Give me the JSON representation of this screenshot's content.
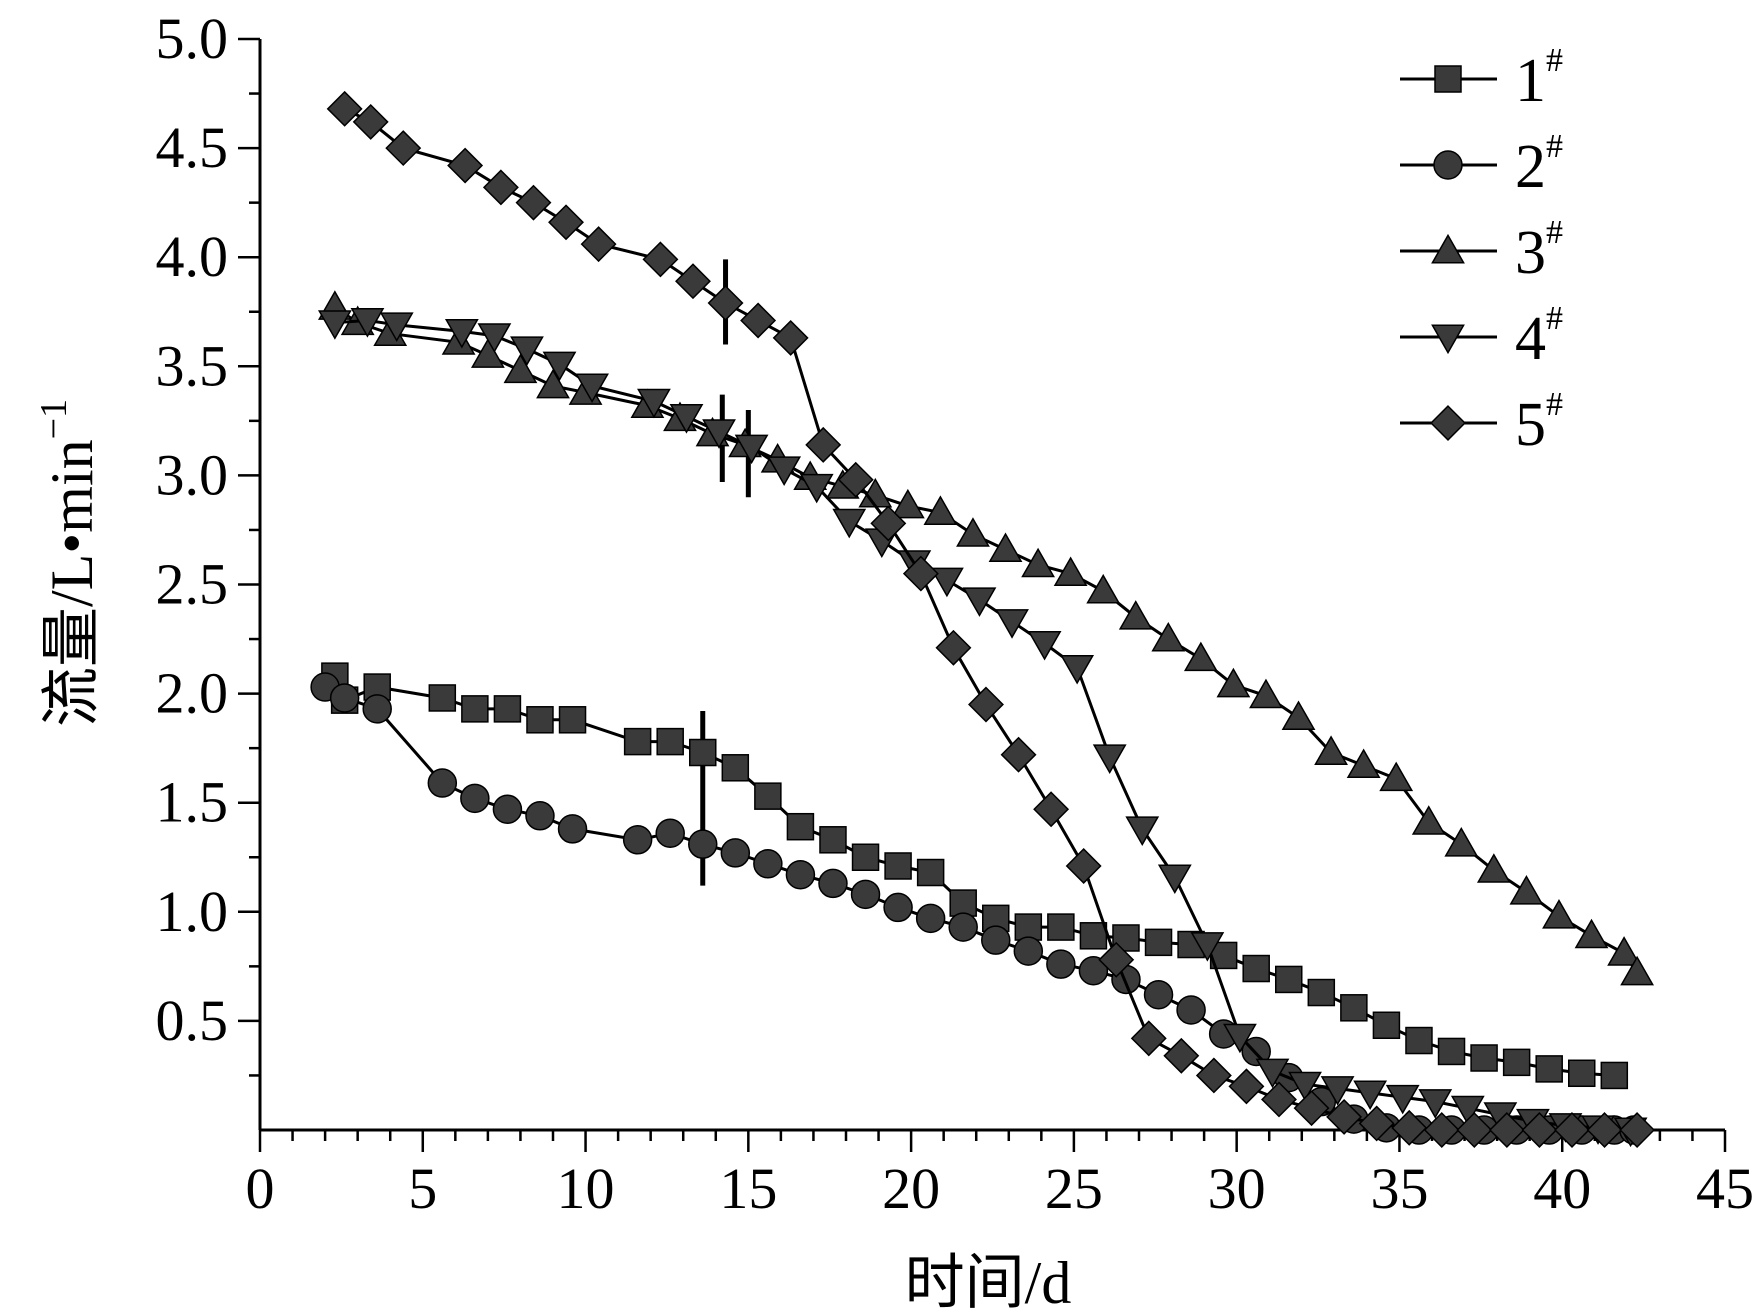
{
  "chart_data": {
    "type": "line",
    "xlabel": "时间/d",
    "ylabel": {
      "main": "流量/L•min",
      "sup": "−1"
    },
    "xlim": [
      0,
      45
    ],
    "ylim": [
      0,
      5.0
    ],
    "xticks": [
      "0",
      "5",
      "10",
      "15",
      "20",
      "25",
      "30",
      "35",
      "40",
      "45"
    ],
    "yticks": [
      "0.5",
      "1.0",
      "1.5",
      "2.0",
      "2.5",
      "3.0",
      "3.5",
      "4.0",
      "4.5",
      "5.0"
    ],
    "grid": false,
    "legend_position": "top-right",
    "series": [
      {
        "name": "1",
        "name_sup": "#",
        "marker": "square",
        "points": [
          [
            2.3,
            2.08
          ],
          [
            2.6,
            1.97
          ],
          [
            3.6,
            2.03
          ],
          [
            5.6,
            1.98
          ],
          [
            6.6,
            1.93
          ],
          [
            7.6,
            1.93
          ],
          [
            8.6,
            1.88
          ],
          [
            9.6,
            1.88
          ],
          [
            11.6,
            1.78
          ],
          [
            12.6,
            1.78
          ],
          [
            13.6,
            1.73
          ],
          [
            14.6,
            1.66
          ],
          [
            15.6,
            1.53
          ],
          [
            16.6,
            1.39
          ],
          [
            17.6,
            1.33
          ],
          [
            18.6,
            1.25
          ],
          [
            19.6,
            1.21
          ],
          [
            20.6,
            1.18
          ],
          [
            21.6,
            1.04
          ],
          [
            22.6,
            0.97
          ],
          [
            23.6,
            0.93
          ],
          [
            24.6,
            0.93
          ],
          [
            25.6,
            0.89
          ],
          [
            26.6,
            0.88
          ],
          [
            27.6,
            0.86
          ],
          [
            28.6,
            0.85
          ],
          [
            29.6,
            0.8
          ],
          [
            30.6,
            0.74
          ],
          [
            31.6,
            0.69
          ],
          [
            32.6,
            0.63
          ],
          [
            33.6,
            0.56
          ],
          [
            34.6,
            0.48
          ],
          [
            35.6,
            0.41
          ],
          [
            36.6,
            0.36
          ],
          [
            37.6,
            0.33
          ],
          [
            38.6,
            0.31
          ],
          [
            39.6,
            0.28
          ],
          [
            40.6,
            0.26
          ],
          [
            41.6,
            0.25
          ]
        ],
        "marker_xs": [
          2.3,
          2.6,
          3.6,
          5.6,
          6.6,
          7.6,
          8.6,
          9.6,
          11.6,
          12.6,
          13.6,
          14.6,
          15.6,
          16.6,
          17.6,
          18.6,
          19.6,
          20.6,
          21.6,
          22.6,
          23.6,
          24.6,
          25.6,
          26.6,
          27.6,
          28.6,
          29.6,
          30.6,
          31.6,
          32.6,
          33.6,
          34.6,
          35.6,
          36.6,
          37.6,
          38.6,
          39.6,
          40.6,
          41.6
        ]
      },
      {
        "name": "2",
        "name_sup": "#",
        "marker": "circle",
        "points": [
          [
            2.0,
            2.03
          ],
          [
            2.6,
            1.98
          ],
          [
            3.6,
            1.93
          ],
          [
            5.6,
            1.59
          ],
          [
            6.6,
            1.52
          ],
          [
            7.6,
            1.47
          ],
          [
            8.6,
            1.44
          ],
          [
            9.6,
            1.38
          ],
          [
            11.6,
            1.33
          ],
          [
            12.6,
            1.36
          ],
          [
            13.6,
            1.31
          ],
          [
            14.6,
            1.27
          ],
          [
            15.6,
            1.22
          ],
          [
            16.6,
            1.17
          ],
          [
            17.6,
            1.13
          ],
          [
            18.6,
            1.08
          ],
          [
            19.6,
            1.02
          ],
          [
            20.6,
            0.97
          ],
          [
            21.6,
            0.93
          ],
          [
            22.6,
            0.87
          ],
          [
            23.6,
            0.82
          ],
          [
            24.6,
            0.76
          ],
          [
            25.6,
            0.73
          ],
          [
            26.6,
            0.69
          ],
          [
            27.6,
            0.62
          ],
          [
            28.6,
            0.55
          ],
          [
            29.6,
            0.44
          ],
          [
            30.6,
            0.36
          ],
          [
            31.6,
            0.24
          ],
          [
            32.6,
            0.13
          ],
          [
            33.6,
            0.05
          ],
          [
            34.6,
            0.01
          ],
          [
            35.6,
            0.0
          ],
          [
            36.6,
            0.0
          ],
          [
            37.6,
            0.0
          ],
          [
            38.6,
            0.0
          ],
          [
            39.6,
            0.0
          ],
          [
            40.6,
            0.0
          ],
          [
            41.6,
            0.0
          ],
          [
            42.2,
            0.0
          ]
        ],
        "marker_xs": [
          2.0,
          2.6,
          3.6,
          5.6,
          6.6,
          7.6,
          8.6,
          9.6,
          11.6,
          12.6,
          13.6,
          14.6,
          15.6,
          16.6,
          17.6,
          18.6,
          19.6,
          20.6,
          21.6,
          22.6,
          23.6,
          24.6,
          25.6,
          26.6,
          27.6,
          28.6,
          29.6,
          30.6,
          31.6,
          32.6,
          33.6,
          34.6,
          35.6,
          36.6,
          37.6,
          38.6,
          39.6,
          40.6,
          41.6,
          42.2
        ]
      },
      {
        "name": "3",
        "name_sup": "#",
        "marker": "triangle-up",
        "points": [
          [
            2.3,
            3.77
          ],
          [
            3.0,
            3.7
          ],
          [
            4.0,
            3.65
          ],
          [
            6.1,
            3.61
          ],
          [
            7.0,
            3.55
          ],
          [
            8.0,
            3.48
          ],
          [
            9.0,
            3.41
          ],
          [
            10.0,
            3.38
          ],
          [
            11.9,
            3.32
          ],
          [
            12.9,
            3.26
          ],
          [
            13.9,
            3.19
          ],
          [
            14.9,
            3.14
          ],
          [
            15.9,
            3.07
          ],
          [
            16.9,
            2.99
          ],
          [
            17.9,
            2.95
          ],
          [
            18.9,
            2.91
          ],
          [
            19.9,
            2.86
          ],
          [
            20.9,
            2.83
          ],
          [
            21.9,
            2.73
          ],
          [
            22.9,
            2.66
          ],
          [
            23.9,
            2.59
          ],
          [
            24.9,
            2.55
          ],
          [
            25.9,
            2.47
          ],
          [
            26.9,
            2.35
          ],
          [
            27.9,
            2.25
          ],
          [
            28.9,
            2.16
          ],
          [
            29.9,
            2.04
          ],
          [
            30.9,
            1.99
          ],
          [
            31.9,
            1.89
          ],
          [
            32.9,
            1.73
          ],
          [
            33.9,
            1.67
          ],
          [
            34.9,
            1.61
          ],
          [
            35.9,
            1.41
          ],
          [
            36.9,
            1.31
          ],
          [
            37.9,
            1.19
          ],
          [
            38.9,
            1.09
          ],
          [
            39.9,
            0.98
          ],
          [
            40.9,
            0.89
          ],
          [
            41.9,
            0.81
          ],
          [
            42.3,
            0.72
          ]
        ],
        "marker_xs": [
          2.3,
          3.0,
          4.0,
          6.1,
          7.0,
          8.0,
          9.0,
          10.0,
          11.9,
          12.9,
          13.9,
          14.9,
          15.9,
          16.9,
          17.9,
          18.9,
          19.9,
          20.9,
          21.9,
          22.9,
          23.9,
          24.9,
          25.9,
          26.9,
          27.9,
          28.9,
          29.9,
          30.9,
          31.9,
          32.9,
          33.9,
          34.9,
          35.9,
          36.9,
          37.9,
          38.9,
          39.9,
          40.9,
          41.9,
          42.3
        ]
      },
      {
        "name": "4",
        "name_sup": "#",
        "marker": "triangle-down",
        "points": [
          [
            2.3,
            3.7
          ],
          [
            3.3,
            3.71
          ],
          [
            4.2,
            3.69
          ],
          [
            6.2,
            3.66
          ],
          [
            7.2,
            3.64
          ],
          [
            8.2,
            3.58
          ],
          [
            9.2,
            3.51
          ],
          [
            10.2,
            3.41
          ],
          [
            12.1,
            3.34
          ],
          [
            13.1,
            3.27
          ],
          [
            14.1,
            3.2
          ],
          [
            15.1,
            3.13
          ],
          [
            16.1,
            3.03
          ],
          [
            17.1,
            2.95
          ],
          [
            18.1,
            2.79
          ],
          [
            19.1,
            2.7
          ],
          [
            20.1,
            2.6
          ],
          [
            21.1,
            2.52
          ],
          [
            22.1,
            2.43
          ],
          [
            23.1,
            2.33
          ],
          [
            24.1,
            2.23
          ],
          [
            25.1,
            2.12
          ],
          [
            26.1,
            1.71
          ],
          [
            27.1,
            1.38
          ],
          [
            28.1,
            1.16
          ],
          [
            29.1,
            0.85
          ],
          [
            30.1,
            0.43
          ],
          [
            31.1,
            0.27
          ],
          [
            32.1,
            0.21
          ],
          [
            33.1,
            0.19
          ],
          [
            34.1,
            0.17
          ],
          [
            35.1,
            0.15
          ],
          [
            36.1,
            0.13
          ],
          [
            37.1,
            0.1
          ],
          [
            38.1,
            0.07
          ],
          [
            39.1,
            0.04
          ],
          [
            40.1,
            0.02
          ],
          [
            41.1,
            0.01
          ],
          [
            42.1,
            0.0
          ]
        ],
        "marker_xs": [
          2.3,
          3.3,
          4.2,
          6.2,
          7.2,
          8.2,
          9.2,
          10.2,
          12.1,
          13.1,
          14.1,
          15.1,
          16.1,
          17.1,
          18.1,
          19.1,
          20.1,
          21.1,
          22.1,
          23.1,
          24.1,
          25.1,
          26.1,
          27.1,
          28.1,
          29.1,
          30.1,
          31.1,
          32.1,
          33.1,
          34.1,
          35.1,
          36.1,
          37.1,
          38.1,
          39.1,
          40.1,
          41.1,
          42.1
        ]
      },
      {
        "name": "5",
        "name_sup": "#",
        "marker": "diamond",
        "points": [
          [
            2.6,
            4.68
          ],
          [
            3.4,
            4.62
          ],
          [
            4.4,
            4.5
          ],
          [
            6.3,
            4.42
          ],
          [
            7.4,
            4.32
          ],
          [
            8.4,
            4.25
          ],
          [
            9.4,
            4.16
          ],
          [
            10.4,
            4.06
          ],
          [
            12.3,
            3.99
          ],
          [
            13.3,
            3.89
          ],
          [
            14.3,
            3.79
          ],
          [
            15.3,
            3.71
          ],
          [
            16.3,
            3.63
          ],
          [
            17.3,
            3.14
          ],
          [
            18.3,
            2.98
          ],
          [
            19.3,
            2.78
          ],
          [
            20.3,
            2.55
          ],
          [
            21.3,
            2.21
          ],
          [
            22.3,
            1.95
          ],
          [
            23.3,
            1.72
          ],
          [
            24.3,
            1.47
          ],
          [
            25.3,
            1.21
          ],
          [
            26.3,
            0.78
          ],
          [
            27.3,
            0.42
          ],
          [
            28.3,
            0.34
          ],
          [
            29.3,
            0.25
          ],
          [
            30.3,
            0.2
          ],
          [
            31.3,
            0.14
          ],
          [
            32.3,
            0.1
          ],
          [
            33.3,
            0.06
          ],
          [
            34.3,
            0.03
          ],
          [
            35.3,
            0.01
          ],
          [
            36.3,
            0.0
          ],
          [
            37.3,
            0.0
          ],
          [
            38.3,
            0.0
          ],
          [
            39.3,
            0.0
          ],
          [
            40.3,
            0.0
          ],
          [
            41.3,
            0.0
          ],
          [
            42.3,
            0.0
          ]
        ],
        "marker_xs": [
          2.6,
          3.4,
          4.4,
          6.3,
          7.4,
          8.4,
          9.4,
          10.4,
          12.3,
          13.3,
          14.3,
          15.3,
          16.3,
          17.3,
          18.3,
          19.3,
          20.3,
          21.3,
          22.3,
          23.3,
          24.3,
          25.3,
          26.3,
          27.3,
          28.3,
          29.3,
          30.3,
          31.3,
          32.3,
          33.3,
          34.3,
          35.3,
          36.3,
          37.3,
          38.3,
          39.3,
          40.3,
          41.3,
          42.3
        ]
      }
    ],
    "annotation_lines": [
      {
        "x": 13.6,
        "y1": 1.12,
        "y2": 1.92
      },
      {
        "x": 14.2,
        "y1": 2.97,
        "y2": 3.37
      },
      {
        "x": 14.3,
        "y1": 3.6,
        "y2": 3.99
      },
      {
        "x": 15.0,
        "y1": 2.9,
        "y2": 3.3
      }
    ]
  }
}
